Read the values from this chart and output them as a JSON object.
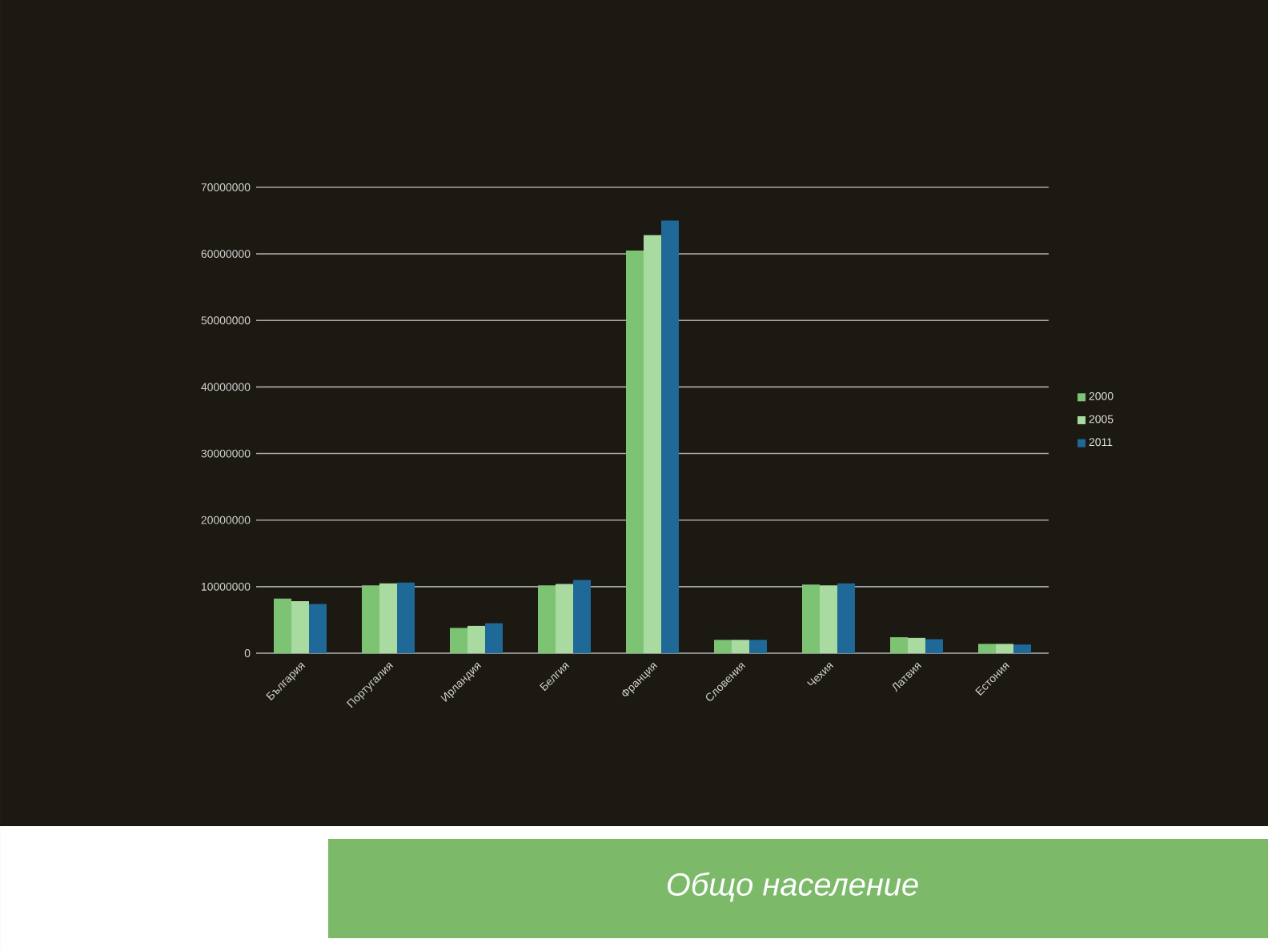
{
  "chart_data": {
    "type": "bar",
    "title": "Общо население",
    "categories": [
      "България",
      "Португалия",
      "Ирландия",
      "Белгия",
      "Франция",
      "Словения",
      "Чехия",
      "Латвия",
      "Естония"
    ],
    "series": [
      {
        "name": "2000",
        "color": "#7cc474",
        "values": [
          8200000,
          10200000,
          3800000,
          10200000,
          60500000,
          2000000,
          10300000,
          2400000,
          1400000
        ]
      },
      {
        "name": "2005",
        "color": "#a9dba0",
        "values": [
          7800000,
          10500000,
          4100000,
          10400000,
          62800000,
          2000000,
          10200000,
          2300000,
          1400000
        ]
      },
      {
        "name": "2011",
        "color": "#1f6999",
        "values": [
          7400000,
          10600000,
          4500000,
          11000000,
          65000000,
          2000000,
          10500000,
          2100000,
          1300000
        ]
      }
    ],
    "ylim": [
      0,
      70000000
    ],
    "yticks": [
      0,
      10000000,
      20000000,
      30000000,
      40000000,
      50000000,
      60000000,
      70000000
    ],
    "grid": "y",
    "legend": "right"
  }
}
